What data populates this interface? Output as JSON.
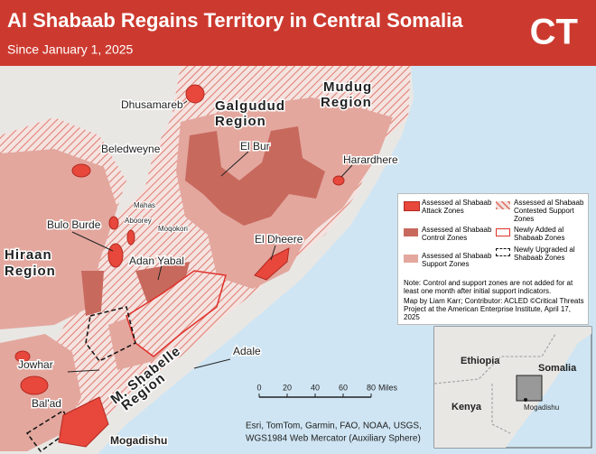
{
  "header": {
    "title": "Al Shabaab Regains Territory in Central Somalia",
    "subtitle": "Since January 1, 2025",
    "logo": "CT"
  },
  "places": [
    "Dhusamareb",
    "Beledweyne",
    "El Bur",
    "Harardhere",
    "Mahas",
    "Aboorey",
    "Moqokori",
    "Bulo Burde",
    "El Dheere",
    "Adan Yabal",
    "Jowhar",
    "Adale",
    "Bal'ad",
    "Mogadishu"
  ],
  "regions": [
    {
      "lines": [
        "Galgudud",
        "Region"
      ]
    },
    {
      "lines": [
        "Mudug",
        "Region"
      ]
    },
    {
      "lines": [
        "Hiraan",
        "Region"
      ]
    },
    {
      "lines": [
        "M. Shabelle",
        "Region"
      ]
    }
  ],
  "legend": {
    "items": [
      "Assessed al Shabaab Attack Zones",
      "Assessed al Shabaab Contested Support Zones",
      "Assessed al Shabaab Control Zones",
      "Newly Added al Shabaab Zones",
      "Assessed al Shabaab Support Zones",
      "Newly Upgraded al Shabaab Zones"
    ],
    "note": "Note: Control and support zones are not added for at least one month after initial support indicators.",
    "credits": "Map by Liam Karr; Contributor: ACLED ©Critical Threats Project at the American Enterprise Institute, April 17, 2025"
  },
  "scale": {
    "ticks": [
      0,
      20,
      40,
      60,
      80
    ],
    "unit": "Miles"
  },
  "inset": {
    "labels": [
      "Ethiopia",
      "Somalia",
      "Kenya",
      "Mogadishu"
    ]
  },
  "attribution": [
    "Esri, TomTom, Garmin, FAO, NOAA, USGS,",
    "WGS1984 Web Mercator (Auxiliary Sphere)"
  ]
}
